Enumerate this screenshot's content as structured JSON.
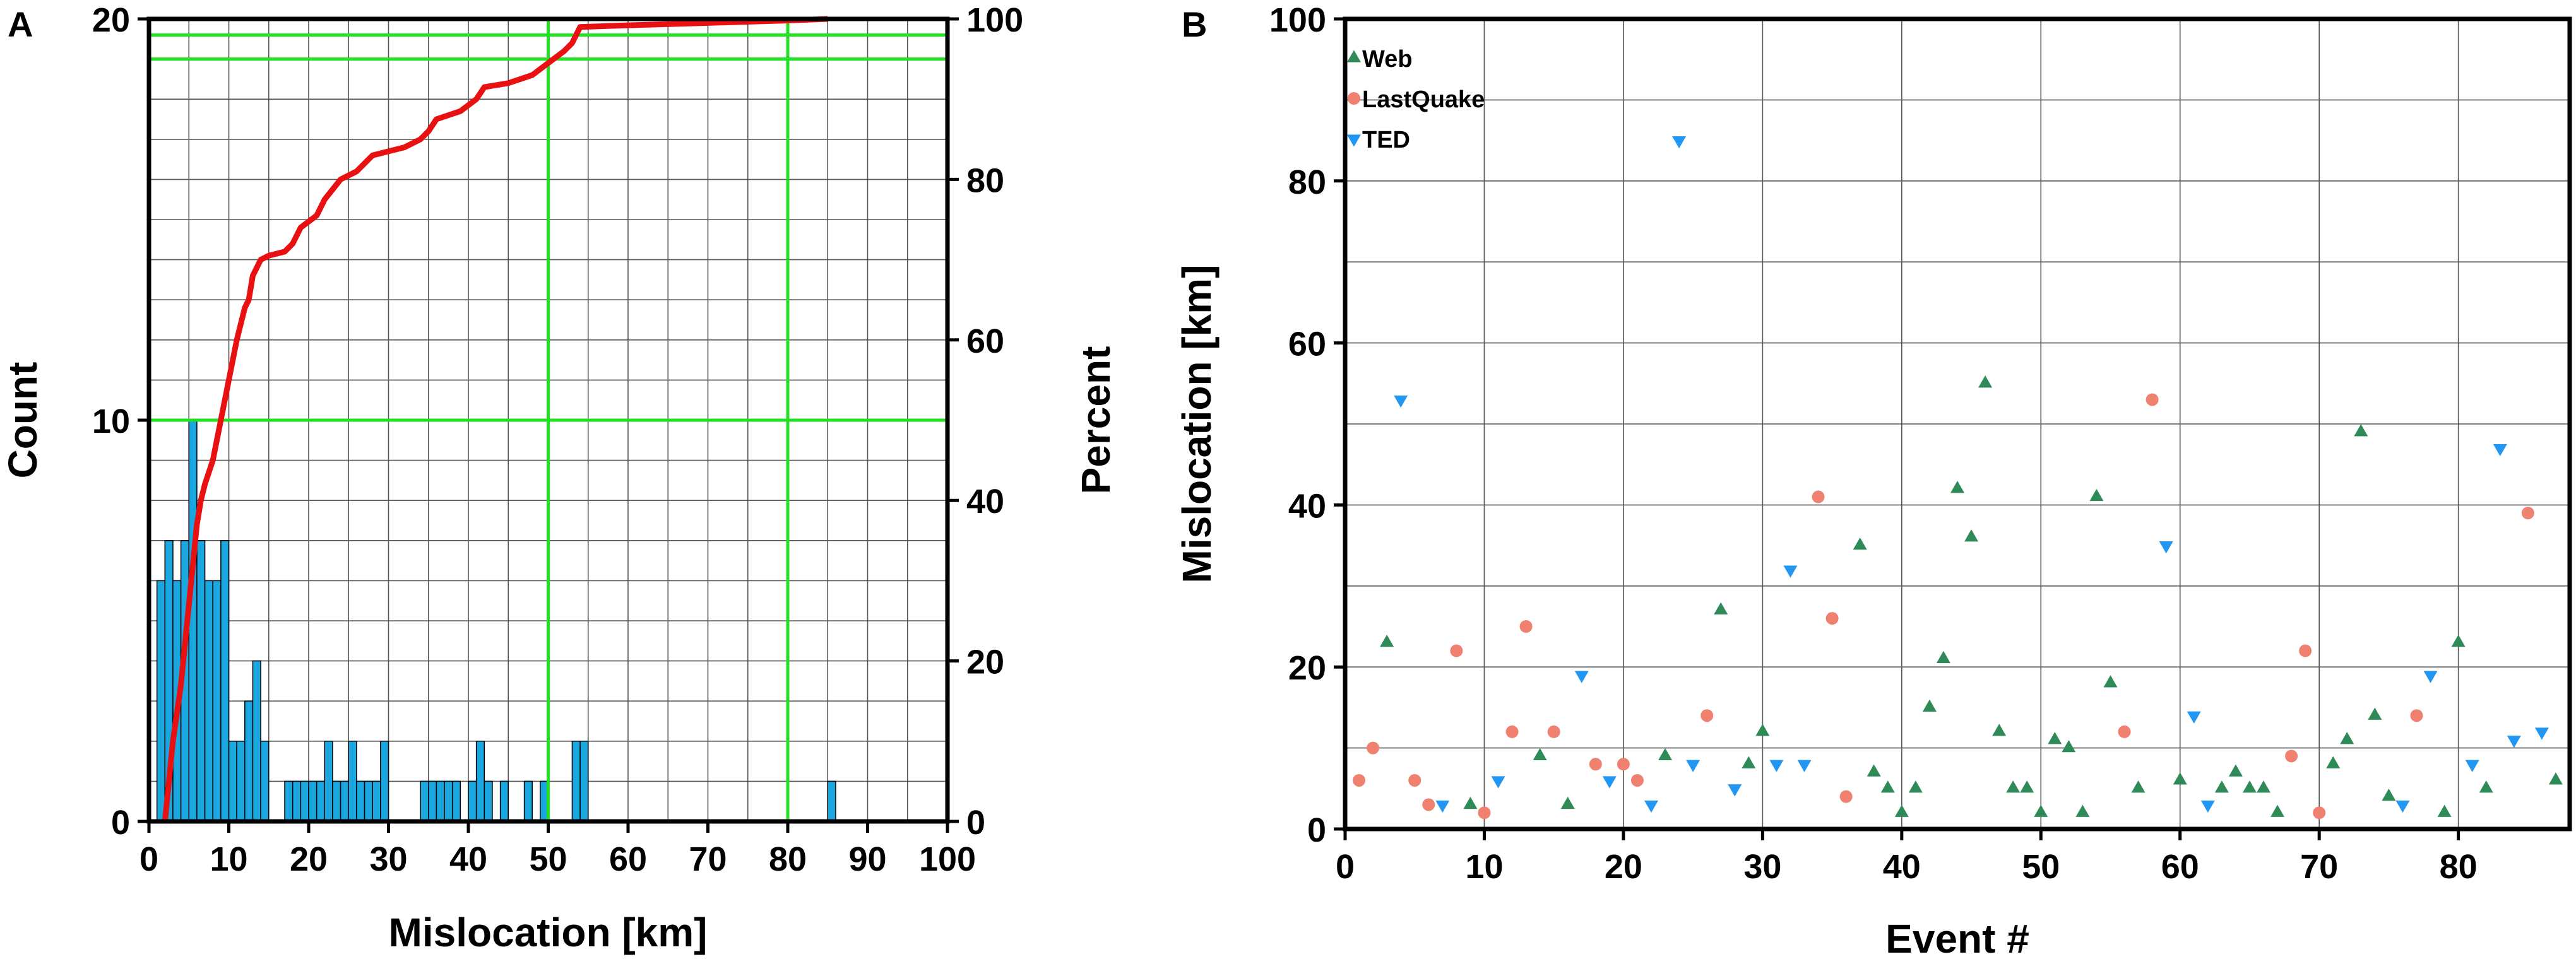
{
  "chart_data": [
    {
      "panel_label": "A",
      "type": "bar",
      "xlabel": "Mislocation [km]",
      "ylabel_left": "Count",
      "ylabel_right": "Percent",
      "xlim": [
        0,
        100
      ],
      "ylim_left": [
        0,
        20
      ],
      "ylim_right": [
        0,
        100
      ],
      "x_ticks": [
        0,
        10,
        20,
        30,
        40,
        50,
        60,
        70,
        80,
        90,
        100
      ],
      "y_ticks_left": [
        0,
        10,
        20
      ],
      "y_ticks_right": [
        0,
        20,
        40,
        60,
        80,
        100
      ],
      "grid": true,
      "colors": {
        "bars": "#1aa7e0",
        "cumulative": "#e81010",
        "reference": "#22e022"
      },
      "histogram": {
        "bin_width": 1,
        "bins": [
          {
            "x": 1,
            "count": 6
          },
          {
            "x": 2,
            "count": 7
          },
          {
            "x": 3,
            "count": 6
          },
          {
            "x": 4,
            "count": 7
          },
          {
            "x": 5,
            "count": 10
          },
          {
            "x": 6,
            "count": 7
          },
          {
            "x": 7,
            "count": 6
          },
          {
            "x": 8,
            "count": 6
          },
          {
            "x": 9,
            "count": 7
          },
          {
            "x": 10,
            "count": 2
          },
          {
            "x": 11,
            "count": 2
          },
          {
            "x": 12,
            "count": 3
          },
          {
            "x": 13,
            "count": 4
          },
          {
            "x": 14,
            "count": 2
          },
          {
            "x": 17,
            "count": 1
          },
          {
            "x": 18,
            "count": 1
          },
          {
            "x": 19,
            "count": 1
          },
          {
            "x": 20,
            "count": 1
          },
          {
            "x": 21,
            "count": 1
          },
          {
            "x": 22,
            "count": 2
          },
          {
            "x": 23,
            "count": 1
          },
          {
            "x": 24,
            "count": 1
          },
          {
            "x": 25,
            "count": 2
          },
          {
            "x": 26,
            "count": 1
          },
          {
            "x": 27,
            "count": 1
          },
          {
            "x": 28,
            "count": 1
          },
          {
            "x": 29,
            "count": 2
          },
          {
            "x": 34,
            "count": 1
          },
          {
            "x": 35,
            "count": 1
          },
          {
            "x": 36,
            "count": 1
          },
          {
            "x": 37,
            "count": 1
          },
          {
            "x": 38,
            "count": 1
          },
          {
            "x": 40,
            "count": 1
          },
          {
            "x": 41,
            "count": 2
          },
          {
            "x": 42,
            "count": 1
          },
          {
            "x": 44,
            "count": 1
          },
          {
            "x": 47,
            "count": 1
          },
          {
            "x": 49,
            "count": 1
          },
          {
            "x": 53,
            "count": 2
          },
          {
            "x": 54,
            "count": 2
          },
          {
            "x": 85,
            "count": 1
          }
        ]
      },
      "cumulative_percent": [
        [
          2,
          0
        ],
        [
          2.5,
          5
        ],
        [
          3,
          10
        ],
        [
          4,
          17
        ],
        [
          4.5,
          22
        ],
        [
          5,
          27
        ],
        [
          5.5,
          32
        ],
        [
          6,
          37
        ],
        [
          6.5,
          40
        ],
        [
          7,
          42
        ],
        [
          8,
          45
        ],
        [
          9,
          50
        ],
        [
          10,
          55
        ],
        [
          11,
          60
        ],
        [
          12,
          64
        ],
        [
          12.5,
          65
        ],
        [
          13,
          68
        ],
        [
          14,
          70
        ],
        [
          15,
          70.5
        ],
        [
          17,
          71
        ],
        [
          18,
          72
        ],
        [
          19,
          74
        ],
        [
          21,
          75.5
        ],
        [
          22,
          77.5
        ],
        [
          24,
          80
        ],
        [
          26,
          81
        ],
        [
          28,
          83
        ],
        [
          30,
          83.5
        ],
        [
          32,
          84
        ],
        [
          34,
          85
        ],
        [
          35,
          86
        ],
        [
          36,
          87.5
        ],
        [
          39,
          88.5
        ],
        [
          41,
          90
        ],
        [
          42,
          91.5
        ],
        [
          45,
          92
        ],
        [
          48,
          93
        ],
        [
          50,
          94.5
        ],
        [
          52,
          96
        ],
        [
          53,
          97
        ],
        [
          54,
          99
        ],
        [
          60,
          99.2
        ],
        [
          70,
          99.5
        ],
        [
          80,
          99.8
        ],
        [
          85,
          100
        ]
      ],
      "reference_lines": {
        "percent": [
          50,
          95,
          98
        ],
        "mislocation_km": [
          50,
          80
        ]
      }
    },
    {
      "panel_label": "B",
      "type": "scatter",
      "xlabel": "Event #",
      "ylabel": "Mislocation [km]",
      "xlim": [
        0,
        88
      ],
      "ylim": [
        0,
        100
      ],
      "x_ticks": [
        0,
        10,
        20,
        30,
        40,
        50,
        60,
        70,
        80
      ],
      "y_ticks": [
        0,
        20,
        40,
        60,
        80,
        100
      ],
      "grid": true,
      "legend_position": "top-left",
      "series": [
        {
          "name": "Web",
          "marker": "triangle-up",
          "color": "#2e8b57",
          "points": [
            [
              3,
              23
            ],
            [
              9,
              3
            ],
            [
              14,
              9
            ],
            [
              16,
              3
            ],
            [
              23,
              9
            ],
            [
              27,
              27
            ],
            [
              29,
              8
            ],
            [
              30,
              12
            ],
            [
              37,
              35
            ],
            [
              38,
              7
            ],
            [
              39,
              5
            ],
            [
              40,
              2
            ],
            [
              41,
              5
            ],
            [
              42,
              15
            ],
            [
              43,
              21
            ],
            [
              44,
              42
            ],
            [
              45,
              36
            ],
            [
              46,
              55
            ],
            [
              47,
              12
            ],
            [
              48,
              5
            ],
            [
              49,
              5
            ],
            [
              50,
              2
            ],
            [
              51,
              11
            ],
            [
              52,
              10
            ],
            [
              53,
              2
            ],
            [
              54,
              41
            ],
            [
              55,
              18
            ],
            [
              57,
              5
            ],
            [
              60,
              6
            ],
            [
              63,
              5
            ],
            [
              64,
              7
            ],
            [
              65,
              5
            ],
            [
              66,
              5
            ],
            [
              67,
              2
            ],
            [
              71,
              8
            ],
            [
              72,
              11
            ],
            [
              73,
              49
            ],
            [
              74,
              14
            ],
            [
              75,
              4
            ],
            [
              79,
              2
            ],
            [
              80,
              23
            ],
            [
              82,
              5
            ],
            [
              87,
              6
            ]
          ]
        },
        {
          "name": "LastQuake",
          "marker": "circle",
          "color": "#f08070",
          "points": [
            [
              1,
              6
            ],
            [
              2,
              10
            ],
            [
              5,
              6
            ],
            [
              6,
              3
            ],
            [
              8,
              22
            ],
            [
              10,
              2
            ],
            [
              12,
              12
            ],
            [
              13,
              25
            ],
            [
              15,
              12
            ],
            [
              18,
              8
            ],
            [
              20,
              8
            ],
            [
              21,
              6
            ],
            [
              26,
              14
            ],
            [
              34,
              41
            ],
            [
              35,
              26
            ],
            [
              36,
              4
            ],
            [
              56,
              12
            ],
            [
              58,
              53
            ],
            [
              68,
              9
            ],
            [
              69,
              22
            ],
            [
              70,
              2
            ],
            [
              77,
              14
            ],
            [
              85,
              39
            ]
          ]
        },
        {
          "name": "TED",
          "marker": "triangle-down",
          "color": "#2196f3",
          "points": [
            [
              4,
              53
            ],
            [
              7,
              3
            ],
            [
              11,
              6
            ],
            [
              17,
              19
            ],
            [
              19,
              6
            ],
            [
              22,
              3
            ],
            [
              24,
              85
            ],
            [
              25,
              8
            ],
            [
              28,
              5
            ],
            [
              31,
              8
            ],
            [
              32,
              32
            ],
            [
              33,
              8
            ],
            [
              59,
              35
            ],
            [
              61,
              14
            ],
            [
              62,
              3
            ],
            [
              76,
              3
            ],
            [
              78,
              19
            ],
            [
              81,
              8
            ],
            [
              83,
              47
            ],
            [
              84,
              11
            ],
            [
              86,
              12
            ]
          ]
        }
      ]
    }
  ]
}
